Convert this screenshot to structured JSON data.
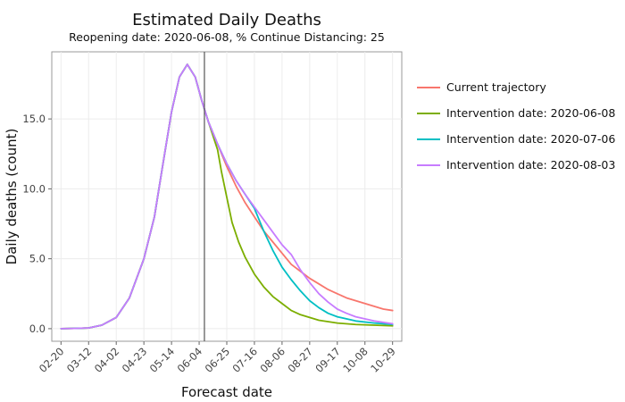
{
  "chart_data": {
    "type": "line",
    "title": "Estimated Daily Deaths",
    "subtitle": "Reopening date: 2020-06-08, % Continue Distancing: 25",
    "xlabel": "Forecast date",
    "ylabel": "Daily deaths (count)",
    "x_ticks": [
      "02-20",
      "03-12",
      "04-02",
      "04-23",
      "05-14",
      "06-04",
      "06-25",
      "07-16",
      "08-06",
      "08-27",
      "09-17",
      "10-08",
      "10-29"
    ],
    "y_ticks": [
      "0.0",
      "5.0",
      "10.0",
      "15.0"
    ],
    "x_range": [
      "2020-02-13",
      "2020-11-05"
    ],
    "ylim": [
      -0.9,
      19.8
    ],
    "grid": true,
    "legend_position": "right",
    "reference_line": {
      "x": "2020-06-08",
      "color": "#555555"
    },
    "series": [
      {
        "name": "Current trajectory",
        "color": "#F8766D",
        "points": [
          [
            "2020-02-20",
            0
          ],
          [
            "2020-03-01",
            0.02
          ],
          [
            "2020-03-12",
            0.05
          ],
          [
            "2020-03-22",
            0.25
          ],
          [
            "2020-04-02",
            0.8
          ],
          [
            "2020-04-12",
            2.2
          ],
          [
            "2020-04-23",
            5.0
          ],
          [
            "2020-05-01",
            8.0
          ],
          [
            "2020-05-07",
            11.5
          ],
          [
            "2020-05-14",
            15.5
          ],
          [
            "2020-05-20",
            18.0
          ],
          [
            "2020-05-26",
            18.9
          ],
          [
            "2020-06-01",
            18.0
          ],
          [
            "2020-06-06",
            16.3
          ],
          [
            "2020-06-11",
            14.8
          ],
          [
            "2020-06-18",
            13.2
          ],
          [
            "2020-06-25",
            11.6
          ],
          [
            "2020-07-02",
            10.2
          ],
          [
            "2020-07-09",
            9.0
          ],
          [
            "2020-07-16",
            8.0
          ],
          [
            "2020-07-23",
            7.0
          ],
          [
            "2020-07-30",
            6.2
          ],
          [
            "2020-08-06",
            5.4
          ],
          [
            "2020-08-13",
            4.6
          ],
          [
            "2020-08-20",
            4.1
          ],
          [
            "2020-08-27",
            3.6
          ],
          [
            "2020-09-03",
            3.2
          ],
          [
            "2020-09-10",
            2.8
          ],
          [
            "2020-09-17",
            2.5
          ],
          [
            "2020-09-24",
            2.2
          ],
          [
            "2020-10-01",
            2.0
          ],
          [
            "2020-10-08",
            1.8
          ],
          [
            "2020-10-15",
            1.6
          ],
          [
            "2020-10-22",
            1.4
          ],
          [
            "2020-10-29",
            1.3
          ]
        ]
      },
      {
        "name": "Intervention date: 2020-06-08",
        "color": "#7CAE00",
        "points": [
          [
            "2020-02-20",
            0
          ],
          [
            "2020-03-01",
            0.02
          ],
          [
            "2020-03-12",
            0.05
          ],
          [
            "2020-03-22",
            0.25
          ],
          [
            "2020-04-02",
            0.8
          ],
          [
            "2020-04-12",
            2.2
          ],
          [
            "2020-04-23",
            5.0
          ],
          [
            "2020-05-01",
            8.0
          ],
          [
            "2020-05-07",
            11.5
          ],
          [
            "2020-05-14",
            15.5
          ],
          [
            "2020-05-20",
            18.0
          ],
          [
            "2020-05-26",
            18.9
          ],
          [
            "2020-06-01",
            18.0
          ],
          [
            "2020-06-06",
            16.3
          ],
          [
            "2020-06-11",
            14.8
          ],
          [
            "2020-06-18",
            12.8
          ],
          [
            "2020-06-21",
            11.2
          ],
          [
            "2020-06-25",
            9.4
          ],
          [
            "2020-06-29",
            7.6
          ],
          [
            "2020-07-04",
            6.2
          ],
          [
            "2020-07-09",
            5.1
          ],
          [
            "2020-07-16",
            3.9
          ],
          [
            "2020-07-23",
            3.0
          ],
          [
            "2020-07-30",
            2.3
          ],
          [
            "2020-08-06",
            1.8
          ],
          [
            "2020-08-13",
            1.3
          ],
          [
            "2020-08-20",
            1.0
          ],
          [
            "2020-08-27",
            0.8
          ],
          [
            "2020-09-03",
            0.6
          ],
          [
            "2020-09-17",
            0.4
          ],
          [
            "2020-10-01",
            0.3
          ],
          [
            "2020-10-15",
            0.25
          ],
          [
            "2020-10-29",
            0.2
          ]
        ]
      },
      {
        "name": "Intervention date: 2020-07-06",
        "color": "#00BFC4",
        "points": [
          [
            "2020-02-20",
            0
          ],
          [
            "2020-03-01",
            0.02
          ],
          [
            "2020-03-12",
            0.05
          ],
          [
            "2020-03-22",
            0.25
          ],
          [
            "2020-04-02",
            0.8
          ],
          [
            "2020-04-12",
            2.2
          ],
          [
            "2020-04-23",
            5.0
          ],
          [
            "2020-05-01",
            8.0
          ],
          [
            "2020-05-07",
            11.5
          ],
          [
            "2020-05-14",
            15.5
          ],
          [
            "2020-05-20",
            18.0
          ],
          [
            "2020-05-26",
            18.9
          ],
          [
            "2020-06-01",
            18.0
          ],
          [
            "2020-06-06",
            16.3
          ],
          [
            "2020-06-11",
            14.8
          ],
          [
            "2020-06-18",
            13.2
          ],
          [
            "2020-06-25",
            11.8
          ],
          [
            "2020-07-02",
            10.6
          ],
          [
            "2020-07-09",
            9.6
          ],
          [
            "2020-07-16",
            8.6
          ],
          [
            "2020-07-23",
            7.0
          ],
          [
            "2020-07-30",
            5.6
          ],
          [
            "2020-08-06",
            4.4
          ],
          [
            "2020-08-13",
            3.5
          ],
          [
            "2020-08-20",
            2.7
          ],
          [
            "2020-08-27",
            2.0
          ],
          [
            "2020-09-03",
            1.5
          ],
          [
            "2020-09-10",
            1.1
          ],
          [
            "2020-09-17",
            0.85
          ],
          [
            "2020-10-01",
            0.55
          ],
          [
            "2020-10-15",
            0.4
          ],
          [
            "2020-10-29",
            0.3
          ]
        ]
      },
      {
        "name": "Intervention date: 2020-08-03",
        "color": "#C77CFF",
        "points": [
          [
            "2020-02-20",
            0
          ],
          [
            "2020-03-01",
            0.02
          ],
          [
            "2020-03-12",
            0.05
          ],
          [
            "2020-03-22",
            0.25
          ],
          [
            "2020-04-02",
            0.8
          ],
          [
            "2020-04-12",
            2.2
          ],
          [
            "2020-04-23",
            5.0
          ],
          [
            "2020-05-01",
            8.0
          ],
          [
            "2020-05-07",
            11.5
          ],
          [
            "2020-05-14",
            15.5
          ],
          [
            "2020-05-20",
            18.0
          ],
          [
            "2020-05-26",
            18.9
          ],
          [
            "2020-06-01",
            18.0
          ],
          [
            "2020-06-06",
            16.3
          ],
          [
            "2020-06-11",
            14.8
          ],
          [
            "2020-06-18",
            13.2
          ],
          [
            "2020-06-25",
            11.8
          ],
          [
            "2020-07-02",
            10.6
          ],
          [
            "2020-07-09",
            9.6
          ],
          [
            "2020-07-16",
            8.7
          ],
          [
            "2020-07-23",
            7.8
          ],
          [
            "2020-07-30",
            6.9
          ],
          [
            "2020-08-06",
            6.0
          ],
          [
            "2020-08-13",
            5.3
          ],
          [
            "2020-08-20",
            4.2
          ],
          [
            "2020-08-27",
            3.3
          ],
          [
            "2020-09-03",
            2.5
          ],
          [
            "2020-09-10",
            1.9
          ],
          [
            "2020-09-17",
            1.4
          ],
          [
            "2020-09-24",
            1.1
          ],
          [
            "2020-10-01",
            0.85
          ],
          [
            "2020-10-15",
            0.55
          ],
          [
            "2020-10-29",
            0.35
          ]
        ]
      }
    ]
  }
}
